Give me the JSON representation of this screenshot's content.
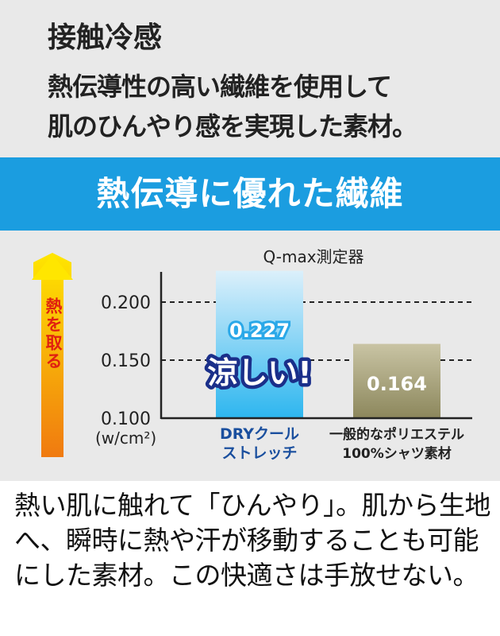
{
  "header": {
    "title": "接触冷感",
    "lines": [
      "熱伝導性の高い繊維を使用して",
      "肌のひんやり感を実現した素材。"
    ]
  },
  "banner": "熱伝導に優れた繊維",
  "chart_data": {
    "type": "bar",
    "title": "Q-max測定器",
    "ylabel": "(w/cm²)",
    "arrow_label": "熱を取る",
    "categories": [
      [
        "DRYクール",
        "ストレッチ"
      ],
      [
        "一般的なポリエステル",
        "100%シャツ素材"
      ]
    ],
    "values": [
      0.227,
      0.164
    ],
    "value_labels": [
      "0.227",
      "0.164"
    ],
    "ylim": [
      0.1,
      0.227
    ],
    "yticks": [
      "0.100",
      "0.150",
      "0.200"
    ],
    "ytick_values": [
      0.1,
      0.15,
      0.2
    ],
    "grid": "dashed",
    "callout": "涼しい!",
    "colors": {
      "bar1": "#9fd8f5",
      "bar2": "#a8a27c",
      "category1": "#1a4f9e"
    }
  },
  "body_text": "熱い肌に触れて「ひんやり」。肌から生地へ、瞬時に熱や汗が移動することも可能にした素材。この快適さは手放せない。"
}
